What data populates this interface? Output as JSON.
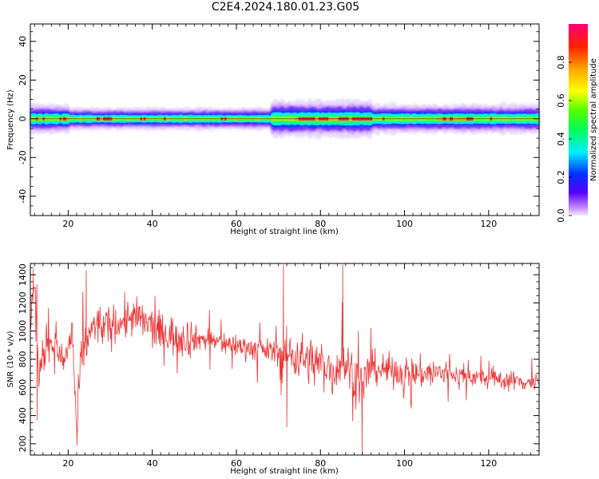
{
  "title": "C2E4.2024.180.01.23.G05",
  "chart_data": [
    {
      "type": "heatmap",
      "xlabel": "Height of straight line (km)",
      "ylabel": "Frequency (Hz)",
      "xlim": [
        11,
        132
      ],
      "ylim": [
        -50,
        49
      ],
      "xticks": [
        20,
        40,
        60,
        80,
        100,
        120
      ],
      "yticks": [
        -40,
        -20,
        0,
        20,
        40
      ],
      "colorbar": {
        "label": "Normalized spectral amplitude",
        "range": [
          0,
          1
        ],
        "ticks": [
          0.0,
          0.2,
          0.4,
          0.6,
          0.8
        ],
        "tick_labels": [
          "0.0",
          "0.2",
          "0.4",
          "0.6",
          "0.8"
        ],
        "colormap": "gist_rainbow_r (red high, violet low)"
      },
      "band": {
        "center_hz": 0,
        "segments": [
          {
            "x_range": [
              11,
              20
            ],
            "half_width_hz": 4
          },
          {
            "x_range": [
              20,
              68
            ],
            "half_width_hz": 3
          },
          {
            "x_range": [
              68,
              92
            ],
            "half_width_hz": 5
          },
          {
            "x_range": [
              92,
              106
            ],
            "half_width_hz": 4
          },
          {
            "x_range": [
              106,
              132
            ],
            "half_width_hz": 4
          }
        ],
        "peak_amplitude_regions_km": [
          [
            19,
            20
          ],
          [
            27,
            30
          ],
          [
            74,
            92
          ],
          [
            107,
            116
          ]
        ]
      }
    },
    {
      "type": "line",
      "xlabel": "Height of straight line (km)",
      "ylabel": "SNR (10 * v/v)",
      "xlim": [
        11,
        132
      ],
      "ylim": [
        120,
        1480
      ],
      "xticks": [
        20,
        40,
        60,
        80,
        100,
        120
      ],
      "yticks": [
        200,
        400,
        600,
        800,
        1000,
        1200,
        1400
      ],
      "color": "#ee3333",
      "series": [
        {
          "x": [
            11,
            12,
            13,
            15,
            17,
            19,
            21,
            22,
            23,
            25,
            27,
            29,
            31,
            33,
            35,
            37,
            39,
            41,
            43,
            45,
            47,
            50,
            53,
            56,
            59,
            62,
            65,
            68,
            70,
            71,
            72,
            75,
            78,
            81,
            83,
            85,
            88,
            90,
            92,
            95,
            98,
            101,
            105,
            110,
            115,
            120,
            125,
            132
          ],
          "y": [
            1000,
            1430,
            650,
            950,
            870,
            780,
            1000,
            250,
            800,
            980,
            1050,
            1020,
            1050,
            1070,
            1100,
            1080,
            1050,
            1000,
            980,
            970,
            960,
            950,
            940,
            920,
            900,
            890,
            870,
            860,
            850,
            800,
            840,
            820,
            780,
            760,
            700,
            800,
            700,
            600,
            750,
            720,
            720,
            700,
            700,
            700,
            680,
            660,
            650,
            630
          ]
        }
      ],
      "extremes": [
        {
          "x": 11.7,
          "y": 1440
        },
        {
          "x": 12.6,
          "y": 370
        },
        {
          "x": 22.1,
          "y": 190
        },
        {
          "x": 24.3,
          "y": 1430
        },
        {
          "x": 71.2,
          "y": 1470
        },
        {
          "x": 72.0,
          "y": 320
        },
        {
          "x": 85.3,
          "y": 1470
        },
        {
          "x": 89.9,
          "y": 130
        }
      ]
    }
  ]
}
